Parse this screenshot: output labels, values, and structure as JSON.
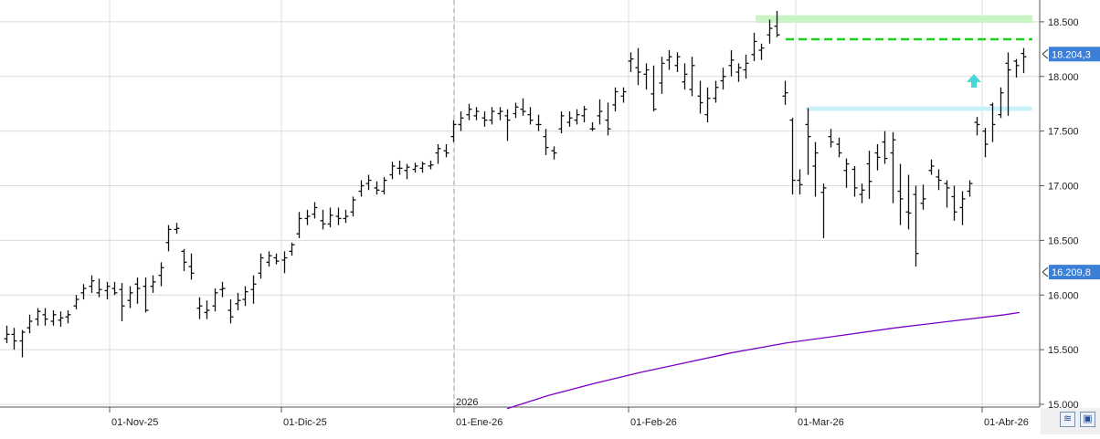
{
  "chart_data": {
    "type": "ohlc",
    "title": "",
    "xlabel": "",
    "ylabel": "",
    "ylim": [
      15000,
      18600
    ],
    "grid": true,
    "legend": "none",
    "y_ticks": [
      "18.500",
      "18.000",
      "17.500",
      "17.000",
      "16.500",
      "16.000",
      "15.500",
      "15.000"
    ],
    "y_tick_values": [
      18500,
      18000,
      17500,
      17000,
      16500,
      16000,
      15500,
      15000
    ],
    "x_tick_labels": [
      "01-Nov-25",
      "01-Dic-25",
      "01-Ene-26",
      "01-Feb-26",
      "01-Mar-26",
      "01-Abr-26"
    ],
    "year_marker": "2026",
    "series": [
      {
        "name": "",
        "bars": [
          [
            15600,
            15720,
            15560,
            15640
          ],
          [
            15640,
            15700,
            15500,
            15580
          ],
          [
            15580,
            15680,
            15430,
            15660
          ],
          [
            15700,
            15820,
            15650,
            15760
          ],
          [
            15780,
            15880,
            15720,
            15850
          ],
          [
            15820,
            15880,
            15720,
            15780
          ],
          [
            15760,
            15860,
            15720,
            15820
          ],
          [
            15770,
            15850,
            15710,
            15790
          ],
          [
            15800,
            15860,
            15740,
            15820
          ],
          [
            15900,
            16000,
            15870,
            15960
          ],
          [
            16020,
            16100,
            15960,
            16060
          ],
          [
            16080,
            16180,
            16020,
            16130
          ],
          [
            16020,
            16150,
            15980,
            16050
          ],
          [
            16040,
            16120,
            15960,
            16080
          ],
          [
            16060,
            16120,
            16000,
            16020
          ],
          [
            16050,
            16110,
            15760,
            15900
          ],
          [
            15950,
            16080,
            15880,
            16020
          ],
          [
            16100,
            16160,
            15920,
            16060
          ],
          [
            16080,
            16160,
            15840,
            15860
          ],
          [
            16080,
            16180,
            16020,
            16120
          ],
          [
            16180,
            16300,
            16080,
            16250
          ],
          [
            16480,
            16640,
            16400,
            16600
          ],
          [
            16600,
            16660,
            16560,
            16610
          ],
          [
            16400,
            16420,
            16220,
            16300
          ],
          [
            16260,
            16380,
            16140,
            16200
          ],
          [
            15880,
            15980,
            15780,
            15900
          ],
          [
            15840,
            15950,
            15780,
            15860
          ],
          [
            15900,
            16060,
            15850,
            16020
          ],
          [
            16050,
            16120,
            15980,
            16060
          ],
          [
            15860,
            15960,
            15740,
            15800
          ],
          [
            15920,
            16020,
            15860,
            15950
          ],
          [
            15960,
            16080,
            15900,
            16030
          ],
          [
            16050,
            16180,
            15920,
            16100
          ],
          [
            16200,
            16380,
            16150,
            16340
          ],
          [
            16300,
            16400,
            16260,
            16360
          ],
          [
            16340,
            16380,
            16280,
            16310
          ],
          [
            16320,
            16400,
            16200,
            16340
          ],
          [
            16400,
            16480,
            16360,
            16460
          ],
          [
            16560,
            16760,
            16520,
            16700
          ],
          [
            16700,
            16780,
            16640,
            16720
          ],
          [
            16740,
            16850,
            16700,
            16800
          ],
          [
            16680,
            16780,
            16600,
            16650
          ],
          [
            16650,
            16800,
            16620,
            16730
          ],
          [
            16720,
            16800,
            16640,
            16700
          ],
          [
            16700,
            16780,
            16660,
            16720
          ],
          [
            16760,
            16900,
            16720,
            16870
          ],
          [
            16950,
            17050,
            16900,
            17000
          ],
          [
            17020,
            17100,
            16960,
            17050
          ],
          [
            16980,
            17040,
            16920,
            16960
          ],
          [
            16950,
            17080,
            16920,
            17050
          ],
          [
            17100,
            17220,
            17060,
            17180
          ],
          [
            17160,
            17230,
            17100,
            17160
          ],
          [
            17140,
            17200,
            17060,
            17170
          ],
          [
            17150,
            17210,
            17120,
            17180
          ],
          [
            17160,
            17220,
            17120,
            17200
          ],
          [
            17180,
            17230,
            17150,
            17190
          ],
          [
            17300,
            17380,
            17200,
            17340
          ],
          [
            17320,
            17380,
            17260,
            17300
          ],
          [
            17450,
            17600,
            17400,
            17560
          ],
          [
            17560,
            17680,
            17500,
            17620
          ],
          [
            17650,
            17750,
            17600,
            17700
          ],
          [
            17640,
            17720,
            17600,
            17680
          ],
          [
            17620,
            17680,
            17540,
            17600
          ],
          [
            17600,
            17720,
            17560,
            17680
          ],
          [
            17660,
            17720,
            17600,
            17680
          ],
          [
            17640,
            17700,
            17410,
            17600
          ],
          [
            17660,
            17760,
            17620,
            17720
          ],
          [
            17700,
            17800,
            17640,
            17680
          ],
          [
            17650,
            17720,
            17560,
            17600
          ],
          [
            17560,
            17650,
            17500,
            17560
          ],
          [
            17450,
            17520,
            17280,
            17350
          ],
          [
            17320,
            17360,
            17240,
            17300
          ],
          [
            17520,
            17680,
            17480,
            17640
          ],
          [
            17580,
            17680,
            17540,
            17620
          ],
          [
            17600,
            17700,
            17560,
            17650
          ],
          [
            17640,
            17730,
            17580,
            17700
          ],
          [
            17520,
            17580,
            17500,
            17520
          ],
          [
            17640,
            17790,
            17560,
            17680
          ],
          [
            17600,
            17760,
            17460,
            17520
          ],
          [
            17740,
            17900,
            17680,
            17860
          ],
          [
            17820,
            17900,
            17760,
            17860
          ],
          [
            18140,
            18220,
            18040,
            18160
          ],
          [
            18080,
            18260,
            17920,
            18040
          ],
          [
            18020,
            18120,
            17880,
            18060
          ],
          [
            17840,
            18100,
            17680,
            17700
          ],
          [
            17940,
            18180,
            17840,
            18120
          ],
          [
            18150,
            18240,
            18060,
            18180
          ],
          [
            18100,
            18220,
            18040,
            18180
          ],
          [
            17950,
            18120,
            17880,
            18020
          ],
          [
            17880,
            18180,
            17820,
            18100
          ],
          [
            17820,
            17960,
            17660,
            17760
          ],
          [
            17650,
            17900,
            17580,
            17800
          ],
          [
            17800,
            17960,
            17760,
            17900
          ],
          [
            17960,
            18080,
            17880,
            18000
          ],
          [
            18100,
            18240,
            18000,
            18150
          ],
          [
            18040,
            18120,
            17950,
            18080
          ],
          [
            18060,
            18200,
            17980,
            18120
          ],
          [
            18200,
            18400,
            18140,
            18320
          ],
          [
            18240,
            18300,
            18150,
            18260
          ],
          [
            18380,
            18520,
            18300,
            18440
          ],
          [
            18460,
            18600,
            18360,
            18380
          ],
          [
            17820,
            17960,
            17740,
            17850
          ],
          [
            17600,
            17620,
            16920,
            17050
          ],
          [
            17050,
            17150,
            16920,
            17010
          ],
          [
            17560,
            17710,
            17100,
            17450
          ],
          [
            17180,
            17400,
            16900,
            17300
          ],
          [
            16940,
            17020,
            16520,
            16980
          ],
          [
            17450,
            17520,
            17350,
            17400
          ],
          [
            17380,
            17440,
            17260,
            17300
          ],
          [
            17140,
            17250,
            16980,
            17200
          ],
          [
            17150,
            17180,
            16900,
            16980
          ],
          [
            16920,
            17020,
            16840,
            16960
          ],
          [
            17200,
            17320,
            16880,
            17040
          ],
          [
            17300,
            17380,
            17140,
            17260
          ],
          [
            17400,
            17500,
            17200,
            17250
          ],
          [
            17300,
            17490,
            16840,
            17420
          ],
          [
            16950,
            17200,
            16640,
            16880
          ],
          [
            16760,
            17100,
            16600,
            16750
          ],
          [
            16920,
            17000,
            16260,
            16380
          ],
          [
            16840,
            17010,
            16780,
            16880
          ],
          [
            17140,
            17240,
            17100,
            17180
          ],
          [
            17080,
            17150,
            16960,
            17050
          ],
          [
            17020,
            17050,
            16800,
            16980
          ],
          [
            16900,
            17000,
            16680,
            16760
          ],
          [
            16800,
            16950,
            16640,
            16880
          ],
          [
            16950,
            17050,
            16900,
            17020
          ],
          [
            17580,
            17630,
            17460,
            17560
          ],
          [
            17500,
            17530,
            17260,
            17380
          ],
          [
            17740,
            17760,
            17400,
            17560
          ],
          [
            17650,
            17900,
            17620,
            17850
          ],
          [
            18120,
            18220,
            17640,
            18060
          ],
          [
            18140,
            18160,
            17990,
            18100
          ],
          [
            18210,
            18260,
            18030,
            18180
          ]
        ]
      },
      {
        "name": "",
        "color": "#7a00c8",
        "values_at_x": [
          [
            555,
            14960
          ],
          [
            600,
            15080
          ],
          [
            650,
            15190
          ],
          [
            700,
            15290
          ],
          [
            750,
            15380
          ],
          [
            800,
            15470
          ],
          [
            860,
            15560
          ],
          [
            920,
            15630
          ],
          [
            980,
            15700
          ],
          [
            1040,
            15760
          ],
          [
            1100,
            15820
          ],
          [
            1116,
            15840
          ]
        ]
      }
    ],
    "last_price_label": "18.204,3",
    "indicator_label": "16.209,8",
    "annotations": {
      "resistance_zone": {
        "from": 18490,
        "to": 18560,
        "color": "#c9f5c4"
      },
      "resistance_line": {
        "value": 18340,
        "color": "#22cc22"
      },
      "support_zone": {
        "from": 17685,
        "to": 17725,
        "color": "#c8f2f8"
      },
      "arrow_color": "#4ad6d6"
    }
  },
  "controls": {
    "zoom_icon": "double-chevron-down-icon",
    "save_icon": "floppy-disk-icon",
    "zoom_glyph": "≋",
    "save_glyph": "▣"
  }
}
